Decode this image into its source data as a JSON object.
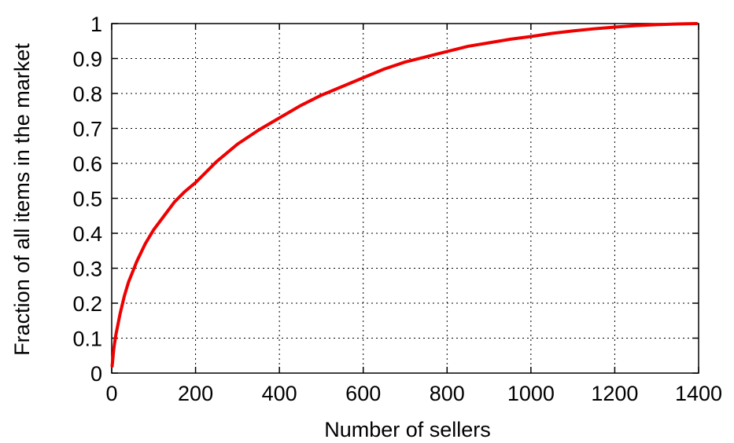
{
  "chart_data": {
    "type": "line",
    "title": "",
    "xlabel": "Number of sellers",
    "ylabel": "Fraction of all items in the market",
    "xlim": [
      0,
      1400
    ],
    "ylim": [
      0,
      1
    ],
    "x_ticks": [
      0,
      200,
      400,
      600,
      800,
      1000,
      1200,
      1400
    ],
    "x_tick_labels": [
      "0",
      "200",
      "400",
      "600",
      "800",
      "1000",
      "1200",
      "1400"
    ],
    "y_ticks": [
      0,
      0.1,
      0.2,
      0.3,
      0.4,
      0.5,
      0.6,
      0.7,
      0.8,
      0.9,
      1
    ],
    "y_tick_labels": [
      "0",
      "0.1",
      "0.2",
      "0.3",
      "0.4",
      "0.5",
      "0.6",
      "0.7",
      "0.8",
      "0.9",
      "1"
    ],
    "grid": true,
    "legend": "none",
    "series": [
      {
        "color": "#ee0000",
        "x": [
          1,
          5,
          10,
          20,
          30,
          40,
          50,
          60,
          80,
          100,
          125,
          150,
          175,
          200,
          250,
          300,
          350,
          400,
          450,
          500,
          550,
          600,
          650,
          700,
          750,
          800,
          850,
          900,
          950,
          1000,
          1050,
          1100,
          1150,
          1200,
          1250,
          1300,
          1350,
          1395
        ],
        "y": [
          0.02,
          0.07,
          0.11,
          0.17,
          0.22,
          0.26,
          0.29,
          0.32,
          0.37,
          0.41,
          0.45,
          0.49,
          0.52,
          0.545,
          0.605,
          0.655,
          0.695,
          0.73,
          0.765,
          0.795,
          0.82,
          0.845,
          0.87,
          0.89,
          0.905,
          0.92,
          0.935,
          0.945,
          0.955,
          0.963,
          0.972,
          0.979,
          0.985,
          0.99,
          0.994,
          0.997,
          0.999,
          1.0
        ]
      }
    ]
  }
}
